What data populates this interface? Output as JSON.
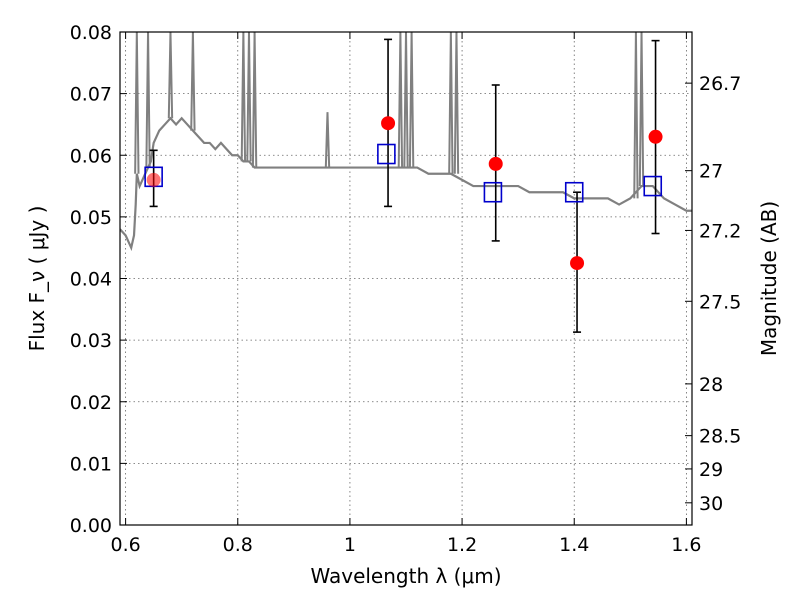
{
  "chart_data": {
    "type": "scatter",
    "xlabel": "Wavelength  λ (μm)",
    "ylabel": "Flux  F_ν  ( μJy )",
    "y2label": "Magnitude (AB)",
    "xlim": [
      0.59,
      1.61
    ],
    "ylim": [
      0.0,
      0.08
    ],
    "grid": true,
    "x_ticks": [
      {
        "value": 0.6,
        "label": "0.6"
      },
      {
        "value": 0.8,
        "label": "0.8"
      },
      {
        "value": 1.0,
        "label": "1"
      },
      {
        "value": 1.2,
        "label": "1.2"
      },
      {
        "value": 1.4,
        "label": "1.4"
      },
      {
        "value": 1.6,
        "label": "1.6"
      }
    ],
    "y_ticks": [
      {
        "value": 0.0,
        "label": "0.00"
      },
      {
        "value": 0.01,
        "label": "0.01"
      },
      {
        "value": 0.02,
        "label": "0.02"
      },
      {
        "value": 0.03,
        "label": "0.03"
      },
      {
        "value": 0.04,
        "label": "0.04"
      },
      {
        "value": 0.05,
        "label": "0.05"
      },
      {
        "value": 0.06,
        "label": "0.06"
      },
      {
        "value": 0.07,
        "label": "0.07"
      },
      {
        "value": 0.08,
        "label": "0.08"
      }
    ],
    "y2_ticks": [
      {
        "flux": 0.0717,
        "label": "26.7"
      },
      {
        "flux": 0.0575,
        "label": "27"
      },
      {
        "flux": 0.0478,
        "label": "27.2"
      },
      {
        "flux": 0.0363,
        "label": "27.5"
      },
      {
        "flux": 0.0229,
        "label": "28"
      },
      {
        "flux": 0.0145,
        "label": "28.5"
      },
      {
        "flux": 0.0091,
        "label": "29"
      },
      {
        "flux": 0.0036,
        "label": "30"
      }
    ],
    "series": [
      {
        "kind": "model_spectrum",
        "color": "#808080",
        "x": [
          0.59,
          0.6,
          0.605,
          0.61,
          0.615,
          0.618,
          0.62,
          0.625,
          0.63,
          0.635,
          0.64,
          0.645,
          0.65,
          0.66,
          0.67,
          0.68,
          0.69,
          0.7,
          0.71,
          0.72,
          0.73,
          0.74,
          0.75,
          0.76,
          0.77,
          0.78,
          0.79,
          0.8,
          0.81,
          0.82,
          0.83,
          0.84,
          0.85,
          0.86,
          0.88,
          0.9,
          0.92,
          0.94,
          0.96,
          0.98,
          1.0,
          1.02,
          1.04,
          1.06,
          1.08,
          1.1,
          1.12,
          1.14,
          1.16,
          1.18,
          1.2,
          1.22,
          1.24,
          1.26,
          1.28,
          1.3,
          1.32,
          1.34,
          1.36,
          1.38,
          1.4,
          1.42,
          1.44,
          1.46,
          1.48,
          1.5,
          1.52,
          1.54,
          1.56,
          1.58,
          1.6,
          1.61
        ],
        "y": [
          0.048,
          0.047,
          0.046,
          0.045,
          0.047,
          0.052,
          0.057,
          0.055,
          0.056,
          0.057,
          0.058,
          0.059,
          0.062,
          0.064,
          0.065,
          0.066,
          0.065,
          0.066,
          0.065,
          0.064,
          0.063,
          0.062,
          0.062,
          0.061,
          0.062,
          0.061,
          0.06,
          0.06,
          0.059,
          0.059,
          0.058,
          0.058,
          0.058,
          0.058,
          0.058,
          0.058,
          0.058,
          0.058,
          0.058,
          0.058,
          0.058,
          0.058,
          0.058,
          0.058,
          0.058,
          0.058,
          0.058,
          0.057,
          0.057,
          0.057,
          0.056,
          0.055,
          0.055,
          0.055,
          0.055,
          0.055,
          0.054,
          0.054,
          0.054,
          0.054,
          0.053,
          0.053,
          0.053,
          0.053,
          0.052,
          0.053,
          0.055,
          0.055,
          0.053,
          0.052,
          0.051,
          0.051
        ],
        "spikes": [
          {
            "x": 0.62,
            "y": 0.08
          },
          {
            "x": 0.64,
            "y": 0.08
          },
          {
            "x": 0.68,
            "y": 0.08
          },
          {
            "x": 0.72,
            "y": 0.08
          },
          {
            "x": 0.81,
            "y": 0.08
          },
          {
            "x": 0.82,
            "y": 0.08
          },
          {
            "x": 0.83,
            "y": 0.08
          },
          {
            "x": 0.96,
            "y": 0.067
          },
          {
            "x": 1.09,
            "y": 0.08
          },
          {
            "x": 1.1,
            "y": 0.08
          },
          {
            "x": 1.11,
            "y": 0.08
          },
          {
            "x": 1.18,
            "y": 0.08
          },
          {
            "x": 1.19,
            "y": 0.08
          },
          {
            "x": 1.51,
            "y": 0.08
          },
          {
            "x": 1.52,
            "y": 0.08
          }
        ]
      },
      {
        "kind": "observed_points",
        "color": "#ff0000",
        "x": [
          0.65,
          1.068,
          1.26,
          1.405,
          1.545
        ],
        "y": [
          0.056,
          0.0652,
          0.0586,
          0.0425,
          0.063
        ],
        "err": [
          [
            0.0517,
            0.0608
          ],
          [
            0.0517,
            0.0788
          ],
          [
            0.0461,
            0.0714
          ],
          [
            0.0313,
            0.054
          ],
          [
            0.0473,
            0.0786
          ]
        ]
      },
      {
        "kind": "model_points",
        "color": "#0000cc",
        "x": [
          0.65,
          1.065,
          1.255,
          1.4,
          1.54
        ],
        "y": [
          0.0565,
          0.0602,
          0.054,
          0.054,
          0.055
        ]
      }
    ]
  }
}
